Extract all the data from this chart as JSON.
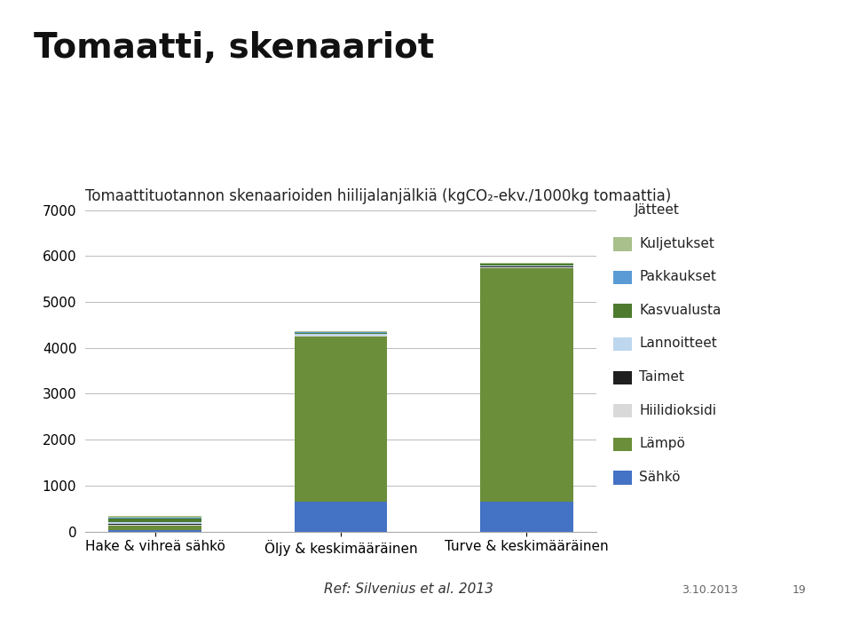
{
  "categories": [
    "Hake & vihreä sähkö",
    "Öljy & keskimääräinen",
    "Turve & keskimääräinen"
  ],
  "title": "Tomaatti, skenaariot",
  "subtitle": "Tomaattituotannon skenaarioiden hiilijalanjälkiä (kgCO₂-ekv./1000kg tomaattia)",
  "ylim": [
    0,
    7000
  ],
  "yticks": [
    0,
    1000,
    2000,
    3000,
    4000,
    5000,
    6000,
    7000
  ],
  "layers": [
    {
      "label": "Sähkö",
      "color": "#4472C4",
      "values": [
        30,
        650,
        650
      ]
    },
    {
      "label": "Lämpö",
      "color": "#6B8E3A",
      "values": [
        100,
        3590,
        5090
      ]
    },
    {
      "label": "Hiilidioksidi",
      "color": "#D9D9D9",
      "values": [
        20,
        20,
        20
      ]
    },
    {
      "label": "Taimet",
      "color": "#1F1F1F",
      "values": [
        15,
        10,
        10
      ]
    },
    {
      "label": "Lannoitteet",
      "color": "#BDD7EE",
      "values": [
        40,
        25,
        25
      ]
    },
    {
      "label": "Kasvualusta",
      "color": "#4E7A2E",
      "values": [
        80,
        30,
        30
      ]
    },
    {
      "label": "Pakkaukset",
      "color": "#5B9BD5",
      "values": [
        20,
        15,
        15
      ]
    },
    {
      "label": "Kuljetukset",
      "color": "#A9C08C",
      "values": [
        25,
        15,
        15
      ]
    },
    {
      "label": "Jätteet",
      "color": "#E2EFD9",
      "values": [
        10,
        5,
        5
      ]
    }
  ],
  "ref_text": "Ref: Silvenius et al. 2013",
  "date_text": "3.10.2013",
  "page_num": "19",
  "background_color": "#FFFFFF",
  "bar_width": 0.5,
  "title_fontsize": 28,
  "title_fontweight": "bold",
  "subtitle_fontsize": 12,
  "tick_fontsize": 11,
  "legend_fontsize": 11
}
